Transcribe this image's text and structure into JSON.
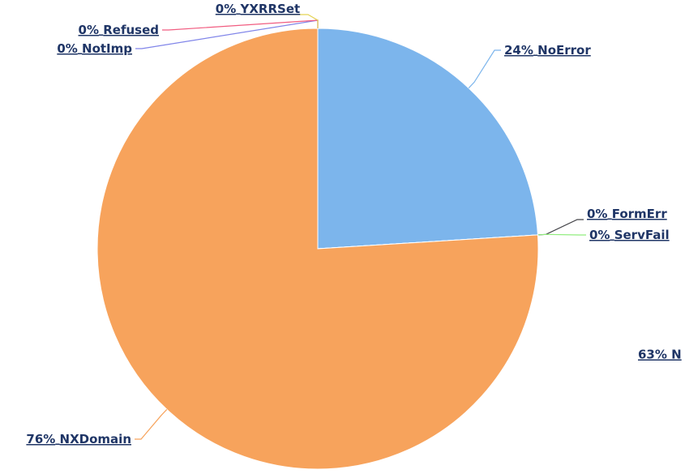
{
  "chart_data": {
    "type": "pie",
    "categories": [
      "NoError",
      "FormErr",
      "ServFail",
      "NXDomain",
      "NotImp",
      "Refused",
      "YXRRSet"
    ],
    "values": [
      24,
      0,
      0,
      76,
      0,
      0,
      0
    ],
    "value_labels": [
      "24%",
      "0%",
      "0%",
      "76%",
      "0%",
      "0%",
      "0%"
    ],
    "colors": [
      "#7cb5ec",
      "#434348",
      "#90ed7d",
      "#f7a35c",
      "#8085e9",
      "#f15c80",
      "#e4d354"
    ],
    "annotations": [
      "63% N"
    ]
  }
}
